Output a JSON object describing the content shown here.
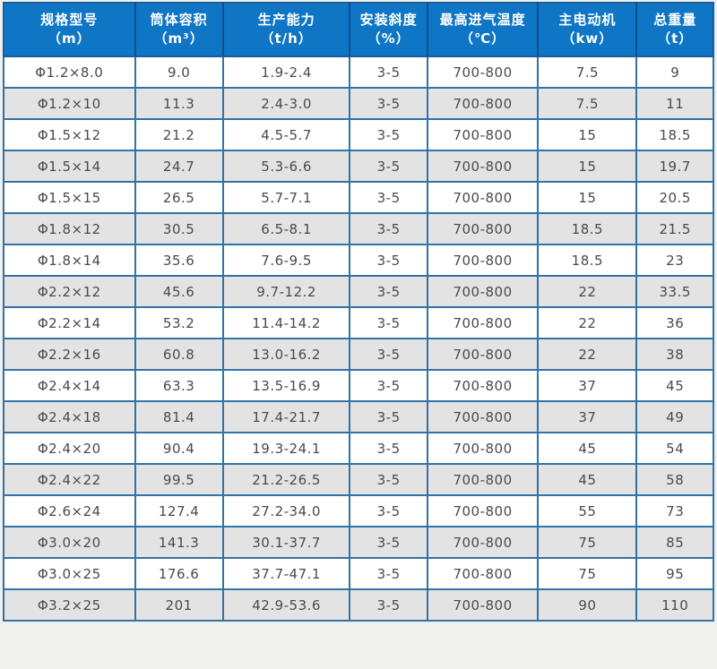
{
  "colors": {
    "header_bg": "#0f76c5",
    "header_text": "#ffffff",
    "border_outer": "#1b5e9b",
    "border_inner": "#3173a6",
    "row_white": "#ffffff",
    "row_alt": "#e3e3e3",
    "cell_text": "#4a4a4a",
    "page_bg": "#f0f0ee"
  },
  "table": {
    "columns": [
      {
        "label": "规格型号",
        "unit": "（m）"
      },
      {
        "label": "筒体容积",
        "unit": "（m³）"
      },
      {
        "label": "生产能力",
        "unit": "（t/h）"
      },
      {
        "label": "安装斜度",
        "unit": "（%）"
      },
      {
        "label": "最高进气温度",
        "unit": "（℃）"
      },
      {
        "label": "主电动机",
        "unit": "（kw）"
      },
      {
        "label": "总重量",
        "unit": "（t）"
      }
    ],
    "rows": [
      [
        "Φ1.2×8.0",
        "9.0",
        "1.9-2.4",
        "3-5",
        "700-800",
        "7.5",
        "9"
      ],
      [
        "Φ1.2×10",
        "11.3",
        "2.4-3.0",
        "3-5",
        "700-800",
        "7.5",
        "11"
      ],
      [
        "Φ1.5×12",
        "21.2",
        "4.5-5.7",
        "3-5",
        "700-800",
        "15",
        "18.5"
      ],
      [
        "Φ1.5×14",
        "24.7",
        "5.3-6.6",
        "3-5",
        "700-800",
        "15",
        "19.7"
      ],
      [
        "Φ1.5×15",
        "26.5",
        "5.7-7.1",
        "3-5",
        "700-800",
        "15",
        "20.5"
      ],
      [
        "Φ1.8×12",
        "30.5",
        "6.5-8.1",
        "3-5",
        "700-800",
        "18.5",
        "21.5"
      ],
      [
        "Φ1.8×14",
        "35.6",
        "7.6-9.5",
        "3-5",
        "700-800",
        "18.5",
        "23"
      ],
      [
        "Φ2.2×12",
        "45.6",
        "9.7-12.2",
        "3-5",
        "700-800",
        "22",
        "33.5"
      ],
      [
        "Φ2.2×14",
        "53.2",
        "11.4-14.2",
        "3-5",
        "700-800",
        "22",
        "36"
      ],
      [
        "Φ2.2×16",
        "60.8",
        "13.0-16.2",
        "3-5",
        "700-800",
        "22",
        "38"
      ],
      [
        "Φ2.4×14",
        "63.3",
        "13.5-16.9",
        "3-5",
        "700-800",
        "37",
        "45"
      ],
      [
        "Φ2.4×18",
        "81.4",
        "17.4-21.7",
        "3-5",
        "700-800",
        "37",
        "49"
      ],
      [
        "Φ2.4×20",
        "90.4",
        "19.3-24.1",
        "3-5",
        "700-800",
        "45",
        "54"
      ],
      [
        "Φ2.4×22",
        "99.5",
        "21.2-26.5",
        "3-5",
        "700-800",
        "45",
        "58"
      ],
      [
        "Φ2.6×24",
        "127.4",
        "27.2-34.0",
        "3-5",
        "700-800",
        "55",
        "73"
      ],
      [
        "Φ3.0×20",
        "141.3",
        "30.1-37.7",
        "3-5",
        "700-800",
        "75",
        "85"
      ],
      [
        "Φ3.0×25",
        "176.6",
        "37.7-47.1",
        "3-5",
        "700-800",
        "75",
        "95"
      ],
      [
        "Φ3.2×25",
        "201",
        "42.9-53.6",
        "3-5",
        "700-800",
        "90",
        "110"
      ]
    ]
  }
}
